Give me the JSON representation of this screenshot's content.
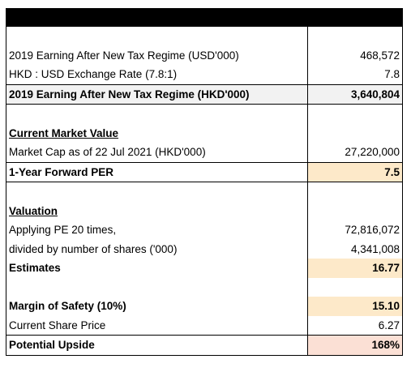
{
  "table": {
    "rows": [
      [
        "2019 Earning After New Tax Regime (USD'000)",
        "468,572"
      ],
      [
        "HKD : USD Exchange Rate (7.8:1)",
        "7.8"
      ],
      [
        "2019 Earning After New Tax Regime (HKD'000)",
        "3,640,804"
      ],
      [
        "Current Market Value"
      ],
      [
        "Market Cap as of 22 Jul 2021 (HKD'000)",
        "27,220,000"
      ],
      [
        "1-Year Forward PER",
        "7.5"
      ],
      [
        "Valuation"
      ],
      [
        "Applying PE 20 times,",
        "72,816,072"
      ],
      [
        "divided by number of shares ('000)",
        "4,341,008"
      ],
      [
        "Estimates",
        "16.77"
      ],
      [
        "Margin of Safety (10%)",
        "15.10"
      ],
      [
        "Current Share Price",
        "6.27"
      ],
      [
        "Potential Upside",
        "168%"
      ]
    ]
  }
}
